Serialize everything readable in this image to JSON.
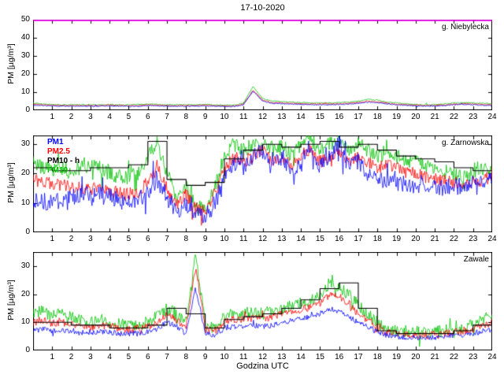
{
  "title": "17-10-2020",
  "xlabel": "Godzina UTC",
  "ylabel": "PM [µg/m³]",
  "x_ticks": [
    1,
    2,
    3,
    4,
    5,
    6,
    7,
    8,
    9,
    10,
    11,
    12,
    13,
    14,
    15,
    16,
    17,
    18,
    19,
    20,
    21,
    22,
    23,
    24
  ],
  "chart_data": [
    {
      "type": "line",
      "station": "g. Niebylecka",
      "xlim": [
        0,
        24
      ],
      "x_step": 0.5,
      "ylim": [
        0,
        50
      ],
      "yticks": [
        0,
        10,
        20,
        30,
        40,
        50
      ],
      "limit_line": {
        "value": 50,
        "color": "#ff00ff"
      },
      "series": [
        {
          "name": "PM10",
          "color": "#00c000",
          "noise": 0.3,
          "spike_p": 0.01,
          "spike_amp": 1,
          "values": [
            4,
            3.5,
            3.2,
            3,
            3,
            3,
            3,
            3,
            3.2,
            3,
            3,
            3.2,
            3.5,
            3.2,
            3,
            3,
            3,
            3,
            3.2,
            3,
            2.8,
            2.7,
            4,
            13,
            6.5,
            5,
            4.8,
            4.5,
            4.2,
            4,
            4,
            4,
            4.2,
            4.5,
            5,
            6,
            5.5,
            4.5,
            4,
            3.5,
            3.2,
            3,
            3,
            3.5,
            4,
            4.2,
            4,
            3.8,
            3.5
          ]
        },
        {
          "name": "PM2.5",
          "color": "#ff0000",
          "noise": 0.25,
          "spike_p": 0.01,
          "spike_amp": 0.8,
          "values": [
            3.4,
            3,
            2.8,
            2.6,
            2.6,
            2.6,
            2.6,
            2.6,
            2.8,
            2.6,
            2.6,
            2.6,
            3,
            2.8,
            2.6,
            2.6,
            2.6,
            2.6,
            2.8,
            2.6,
            2.4,
            2.3,
            3.4,
            11,
            5.5,
            4.2,
            4,
            3.8,
            3.6,
            3.5,
            3.5,
            3.5,
            3.6,
            3.8,
            4.2,
            5,
            4.7,
            3.9,
            3.4,
            3,
            2.8,
            2.6,
            2.6,
            3,
            3.4,
            3.6,
            3.4,
            3.2,
            3
          ]
        },
        {
          "name": "PM1",
          "color": "#0000ff",
          "noise": 0.25,
          "spike_p": 0.01,
          "spike_amp": 0.8,
          "values": [
            2.9,
            2.6,
            2.4,
            2.2,
            2.2,
            2.2,
            2.2,
            2.2,
            2.4,
            2.2,
            2.2,
            2.2,
            2.6,
            2.4,
            2.2,
            2.2,
            2.2,
            2.2,
            2.4,
            2.2,
            2.1,
            2,
            3,
            10.5,
            5,
            3.8,
            3.6,
            3.4,
            3.2,
            3,
            3,
            3,
            3.2,
            3.4,
            3.8,
            4.5,
            4.2,
            3.5,
            3,
            2.6,
            2.4,
            2.2,
            2.2,
            2.6,
            3,
            3.2,
            3,
            2.8,
            2.6
          ]
        }
      ]
    },
    {
      "type": "line",
      "station": "g. Zarnowska",
      "xlim": [
        0,
        24
      ],
      "x_step": 0.5,
      "ylim": [
        0,
        33
      ],
      "yticks": [
        0,
        10,
        20,
        30
      ],
      "legend": [
        {
          "label": "PM1",
          "color": "#0000ff"
        },
        {
          "label": "PM2.5",
          "color": "#ff0000"
        },
        {
          "label": "PM10 - h",
          "color": "#000000"
        },
        {
          "label": "PM10",
          "color": "#00c000"
        }
      ],
      "series": [
        {
          "name": "PM10",
          "color": "#00c000",
          "noise": 2.5,
          "spike_p": 0.06,
          "spike_amp": 5,
          "values": [
            24,
            22,
            21,
            22,
            21,
            22,
            23,
            22,
            20,
            19,
            19,
            20,
            26,
            31,
            20,
            12,
            16,
            9,
            8,
            16,
            26,
            30,
            28,
            30,
            32,
            28,
            30,
            26,
            30,
            32,
            28,
            30,
            32,
            28,
            30,
            28,
            26,
            28,
            26,
            24,
            24,
            23,
            22,
            21,
            20,
            19,
            20,
            21,
            22
          ]
        },
        {
          "name": "PM2.5",
          "color": "#ff0000",
          "noise": 2.2,
          "spike_p": 0.05,
          "spike_amp": 4.5,
          "values": [
            18,
            17,
            16.5,
            16,
            15.5,
            15,
            15,
            14.5,
            14,
            13.5,
            13,
            14,
            17,
            22,
            15,
            10,
            13,
            8,
            7,
            13,
            21,
            26,
            24,
            26,
            28,
            24,
            26,
            22,
            26,
            28,
            24,
            26,
            28,
            24,
            26,
            24,
            22,
            23,
            22,
            20,
            20,
            19,
            18,
            17.5,
            17,
            16.5,
            17,
            18,
            19
          ]
        },
        {
          "name": "PM1",
          "color": "#0000ff",
          "noise": 3,
          "spike_p": 0.06,
          "spike_amp": 5.5,
          "values": [
            11,
            10.5,
            10,
            11,
            12,
            12.5,
            13,
            12.5,
            12,
            11,
            10,
            11,
            14,
            18,
            12,
            7,
            10,
            6,
            5,
            10,
            18,
            24,
            22,
            26,
            28,
            22,
            26,
            20,
            24,
            30,
            22,
            26,
            30,
            22,
            24,
            20,
            17,
            18,
            17,
            16,
            16,
            15.5,
            15,
            15,
            15.5,
            16,
            16.5,
            17,
            18
          ]
        }
      ],
      "hourly": {
        "name": "PM10 - h",
        "color": "#000000",
        "values": [
          22,
          21,
          21,
          22,
          22,
          23,
          31,
          18,
          16,
          17,
          25,
          28,
          30,
          29,
          30,
          31,
          29,
          30,
          28,
          26,
          25,
          24,
          22,
          21
        ]
      }
    },
    {
      "type": "line",
      "station": "Zawale",
      "xlim": [
        0,
        24
      ],
      "x_step": 0.5,
      "ylim": [
        0,
        35
      ],
      "yticks": [
        0,
        10,
        20,
        30
      ],
      "series": [
        {
          "name": "PM10",
          "color": "#00c000",
          "noise": 2.2,
          "spike_p": 0.05,
          "spike_amp": 4,
          "values": [
            13,
            14,
            12,
            13,
            12,
            11,
            10,
            10,
            10,
            9.5,
            9,
            9,
            10,
            12,
            15,
            13,
            10,
            34,
            9,
            8,
            12,
            13,
            13,
            14,
            13,
            14,
            15,
            16,
            17,
            18,
            20,
            24,
            22,
            20,
            16,
            13,
            10,
            8,
            7,
            7,
            6.5,
            6.5,
            6.5,
            7,
            7.5,
            8,
            9,
            11,
            12
          ]
        },
        {
          "name": "PM2.5",
          "color": "#ff0000",
          "noise": 1.4,
          "spike_p": 0.03,
          "spike_amp": 2.5,
          "values": [
            10,
            11,
            9.5,
            10,
            9.5,
            9,
            8.5,
            8.5,
            8.5,
            8,
            7.5,
            7.5,
            8.5,
            10,
            13,
            11,
            8,
            30,
            7.5,
            7,
            10,
            11,
            11,
            12,
            11,
            12,
            13,
            13.5,
            14.5,
            15.5,
            17,
            20,
            19,
            17,
            13,
            11,
            8,
            6.5,
            6,
            5.5,
            5.5,
            5.5,
            5.5,
            6,
            6.5,
            7,
            7.5,
            9,
            10
          ]
        },
        {
          "name": "PM1",
          "color": "#0000ff",
          "noise": 1,
          "spike_p": 0.02,
          "spike_amp": 2,
          "values": [
            7,
            7.5,
            7,
            7,
            7,
            6.5,
            6.5,
            6.5,
            6.5,
            6,
            6,
            6,
            6.5,
            7.5,
            10,
            8.5,
            6,
            22,
            6,
            5.5,
            8,
            8.5,
            8.5,
            9,
            8.5,
            9,
            10,
            10.5,
            11,
            12,
            13,
            15,
            14,
            12,
            10,
            8.5,
            6.5,
            5.5,
            5,
            4.5,
            4.5,
            4.5,
            4.5,
            5,
            5.5,
            5.5,
            6,
            7,
            7.5
          ]
        }
      ],
      "hourly": {
        "name": "PM10 - h",
        "color": "#000000",
        "values": [
          10,
          10,
          9,
          9,
          8,
          8,
          9,
          15,
          13,
          8,
          11,
          12,
          13,
          15,
          18,
          22,
          24,
          15,
          7,
          6,
          6,
          6,
          7,
          9
        ]
      }
    }
  ]
}
